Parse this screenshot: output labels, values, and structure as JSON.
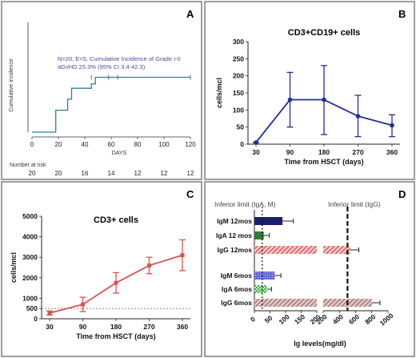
{
  "colors": {
    "km": "#2c7fa0",
    "b_series": "#1f2ea0",
    "c_series": "#d9534f",
    "igm12": "#1b1f6b",
    "iga12": "#2e7d32",
    "igg12": "#d94a4a",
    "igm6": "#6a6ad8",
    "iga6": "#43b047",
    "igg6": "#a36a6a"
  },
  "chart_data": [
    {
      "panel": "A",
      "type": "line",
      "ylabel": "Cumulative incidence",
      "xlabel": "DAYS",
      "x_ticks": [
        0,
        20,
        40,
        60,
        80,
        100,
        120
      ],
      "xlim": [
        0,
        120
      ],
      "ylim": [
        0,
        0.5
      ],
      "steps": [
        [
          0,
          0
        ],
        [
          18,
          0
        ],
        [
          18,
          0.1
        ],
        [
          27,
          0.1
        ],
        [
          27,
          0.15
        ],
        [
          30,
          0.15
        ],
        [
          30,
          0.2
        ],
        [
          45,
          0.2
        ],
        [
          45,
          0.22
        ],
        [
          48,
          0.22
        ],
        [
          48,
          0.25
        ],
        [
          120,
          0.25
        ]
      ],
      "censor_marks": [
        45,
        58,
        65,
        120
      ],
      "annotation": [
        "N=20, E=5, Cumulative Incidence of Grade I-II",
        "aGvHD 25.3% (95% CI 3.4-42.3)"
      ],
      "risk_label": "Number at risk",
      "risk_values": [
        "20",
        "20",
        "16",
        "14",
        "12",
        "12",
        "12"
      ]
    },
    {
      "panel": "B",
      "type": "line",
      "title": "CD3+CD19+ cells",
      "xlabel": "Time from HSCT (days)",
      "ylabel": "cells/mcl",
      "categories": [
        "30",
        "90",
        "180",
        "270",
        "360"
      ],
      "values": [
        5,
        130,
        130,
        82,
        55
      ],
      "err_low": [
        5,
        50,
        28,
        22,
        22
      ],
      "err_high": [
        5,
        210,
        230,
        143,
        86
      ],
      "y_ticks": [
        0,
        50,
        100,
        150,
        200,
        250,
        300
      ],
      "ylim": [
        0,
        300
      ]
    },
    {
      "panel": "C",
      "type": "line",
      "title": "CD3+ cells",
      "xlabel": "Time from HSCT (days)",
      "ylabel": "cells/mcl",
      "categories": [
        "30",
        "90",
        "180",
        "270",
        "360"
      ],
      "values": [
        280,
        700,
        1750,
        2600,
        3100
      ],
      "err_low": [
        180,
        350,
        1250,
        2200,
        2350
      ],
      "err_high": [
        380,
        1050,
        2250,
        3000,
        3850
      ],
      "y_ticks": [
        0,
        500,
        1000,
        2000,
        3000,
        4000,
        5000
      ],
      "reference_line": 500,
      "ylim": [
        0,
        5000
      ]
    },
    {
      "panel": "D",
      "type": "bar",
      "xlabel": "Ig levels(mg/dl)",
      "limit_labels": [
        "Inferior limit (IgA, M)",
        "Inferior limit (IgG)"
      ],
      "left_ticks": [
        "0",
        "50",
        "100",
        "150",
        "200"
      ],
      "right_ticks": [
        "200",
        "400",
        "600",
        "800",
        "1000"
      ],
      "bars": [
        {
          "label": "IgM 12mos",
          "value": 90,
          "err": 125
        },
        {
          "label": "IgA 12 mos",
          "value": 30,
          "err": 48
        },
        {
          "label": "IgG 12mos",
          "value": 530,
          "err": 640
        },
        {
          "label": "IgM 6mos",
          "value": 65,
          "err": 85
        },
        {
          "label": "IgA 6mos",
          "value": 40,
          "err": 55
        },
        {
          "label": "IgG 6mos",
          "value": 800,
          "err": 900
        }
      ],
      "limit_iga_m": 25,
      "limit_igg": 500
    }
  ]
}
